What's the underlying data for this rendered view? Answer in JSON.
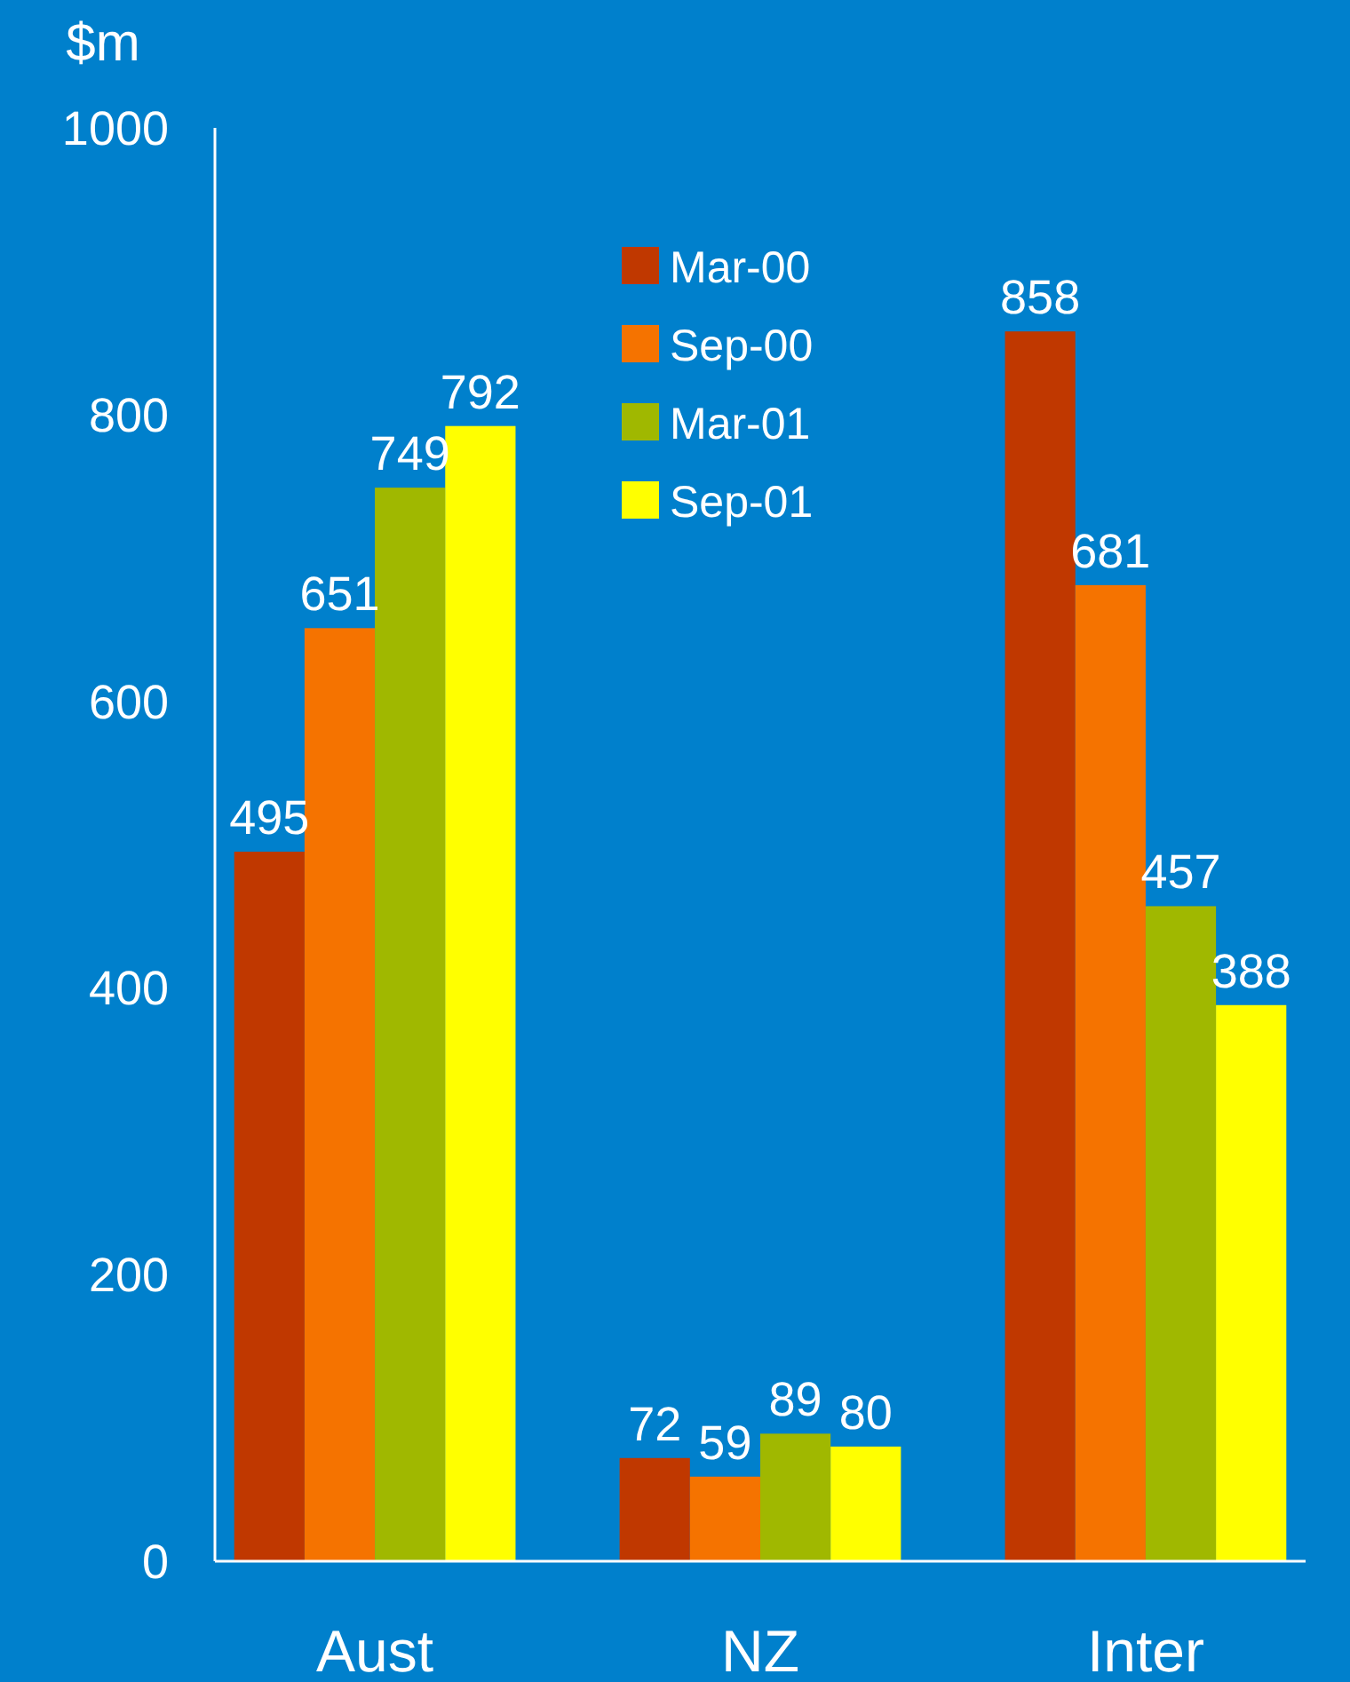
{
  "chart_data": {
    "type": "bar",
    "ylabel": "$m",
    "categories": [
      "Aust",
      "NZ",
      "Inter"
    ],
    "series": [
      {
        "name": "Mar-00",
        "color": "#c03800",
        "values": [
          495,
          72,
          858
        ]
      },
      {
        "name": "Sep-00",
        "color": "#f57300",
        "values": [
          651,
          59,
          681
        ]
      },
      {
        "name": "Mar-01",
        "color": "#a0b800",
        "values": [
          749,
          89,
          457
        ]
      },
      {
        "name": "Sep-01",
        "color": "#ffff00",
        "values": [
          792,
          80,
          388
        ]
      }
    ],
    "ylim": [
      0,
      1000
    ],
    "yticks": [
      0,
      200,
      400,
      600,
      800,
      1000
    ],
    "data_labels": true,
    "legend": "top",
    "grid": false
  }
}
